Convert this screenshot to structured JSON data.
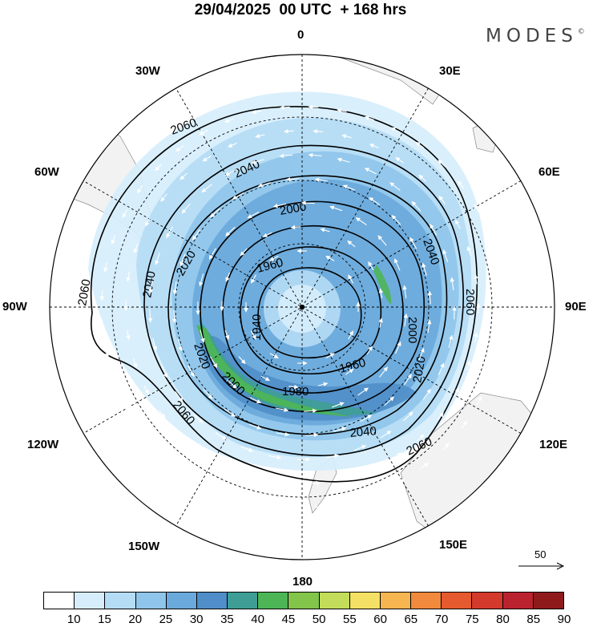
{
  "header": {
    "title": "29/04/2025  00 UTC  + 168 hrs",
    "brand": "MODES",
    "brand_mark": "©"
  },
  "map": {
    "projection": "south polar stereographic",
    "longitude_labels": [
      "0",
      "30E",
      "60E",
      "90E",
      "120E",
      "150E",
      "180",
      "150W",
      "120W",
      "90W",
      "60W",
      "30W"
    ],
    "contour_labels": [
      "2060",
      "2040",
      "2020",
      "2000",
      "1980",
      "1960",
      "1940"
    ],
    "contour_color": "#000000",
    "wind_vector_color": "#ffffff",
    "land_color": "#f2f2f2",
    "reference_vector": "50"
  },
  "colorbar": {
    "ticks": [
      "10",
      "15",
      "20",
      "25",
      "30",
      "35",
      "40",
      "45",
      "50",
      "55",
      "60",
      "65",
      "70",
      "75",
      "80",
      "85",
      "90"
    ],
    "colors": [
      "#ffffff",
      "#d6eefc",
      "#b5dcf5",
      "#8fc5ea",
      "#6aa9dc",
      "#4f8ec8",
      "#3e9e95",
      "#4db556",
      "#83c44b",
      "#c3dc5a",
      "#f4e064",
      "#f5b550",
      "#f18a3c",
      "#e55a2e",
      "#d43a2c",
      "#bb2230",
      "#8f1a1c"
    ]
  }
}
